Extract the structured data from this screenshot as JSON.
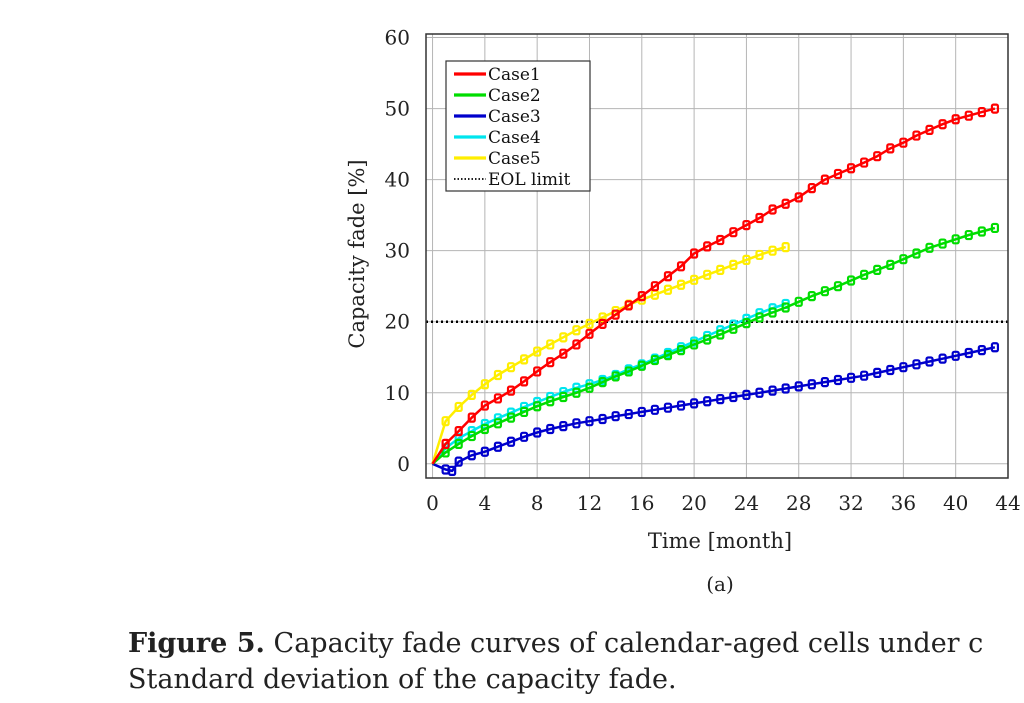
{
  "figure": {
    "subcaption": "(a)",
    "caption_label": "Figure 5.",
    "caption_line1": "Capacity fade curves of calendar-aged cells under c",
    "caption_line2": "Standard deviation of the capacity fade."
  },
  "chart_data": {
    "type": "line",
    "title": "",
    "xlabel": "Time [month]",
    "ylabel": "Capacity fade [%]",
    "xlim": [
      -0.5,
      44
    ],
    "ylim": [
      -2,
      60.5
    ],
    "xticks": [
      0,
      4,
      8,
      12,
      16,
      20,
      24,
      28,
      32,
      36,
      40,
      44
    ],
    "yticks": [
      0,
      10,
      20,
      30,
      40,
      50,
      60
    ],
    "grid": true,
    "legend_position": "top-left",
    "series": [
      {
        "name": "Case1",
        "color": "#ff0000",
        "x": [
          0,
          1,
          2,
          3,
          4,
          5,
          6,
          7,
          8,
          9,
          10,
          11,
          12,
          13,
          14,
          15,
          16,
          17,
          18,
          19,
          20,
          21,
          22,
          23,
          24,
          25,
          26,
          27,
          28,
          29,
          30,
          31,
          32,
          33,
          34,
          35,
          36,
          37,
          38,
          39,
          40,
          41,
          42,
          43
        ],
        "y": [
          0,
          2.8,
          4.6,
          6.5,
          8.2,
          9.2,
          10.3,
          11.6,
          13.0,
          14.3,
          15.5,
          16.8,
          18.3,
          19.7,
          21.0,
          22.3,
          23.6,
          25.0,
          26.4,
          27.8,
          29.6,
          30.6,
          31.5,
          32.6,
          33.6,
          34.6,
          35.8,
          36.6,
          37.5,
          38.8,
          40.0,
          40.8,
          41.6,
          42.4,
          43.3,
          44.4,
          45.2,
          46.2,
          47.0,
          47.8,
          48.5,
          49.0,
          49.5,
          50.0
        ]
      },
      {
        "name": "Case2",
        "color": "#00dd00",
        "x": [
          0,
          1,
          2,
          3,
          4,
          5,
          6,
          7,
          8,
          9,
          10,
          11,
          12,
          13,
          14,
          15,
          16,
          17,
          18,
          19,
          20,
          21,
          22,
          23,
          24,
          25,
          26,
          27,
          28,
          29,
          30,
          31,
          32,
          33,
          34,
          35,
          36,
          37,
          38,
          39,
          40,
          41,
          42,
          43
        ],
        "y": [
          0,
          1.6,
          2.8,
          3.9,
          4.9,
          5.7,
          6.5,
          7.3,
          8.1,
          8.8,
          9.4,
          10.0,
          10.7,
          11.5,
          12.3,
          13.0,
          13.8,
          14.6,
          15.3,
          16.0,
          16.8,
          17.5,
          18.2,
          19.0,
          19.8,
          20.6,
          21.3,
          22.0,
          22.8,
          23.6,
          24.3,
          25.0,
          25.8,
          26.6,
          27.3,
          28.0,
          28.8,
          29.6,
          30.4,
          31.0,
          31.6,
          32.2,
          32.7,
          33.2
        ]
      },
      {
        "name": "Case3",
        "color": "#0000cc",
        "x": [
          0,
          1,
          1.5,
          2,
          3,
          4,
          5,
          6,
          7,
          8,
          9,
          10,
          11,
          12,
          13,
          14,
          15,
          16,
          17,
          18,
          19,
          20,
          21,
          22,
          23,
          24,
          25,
          26,
          27,
          28,
          29,
          30,
          31,
          32,
          33,
          34,
          35,
          36,
          37,
          38,
          39,
          40,
          41,
          42,
          43
        ],
        "y": [
          0,
          -0.8,
          -1.0,
          0.3,
          1.2,
          1.7,
          2.4,
          3.1,
          3.8,
          4.4,
          4.9,
          5.3,
          5.7,
          6.0,
          6.3,
          6.7,
          7.0,
          7.3,
          7.6,
          7.9,
          8.2,
          8.5,
          8.8,
          9.1,
          9.4,
          9.7,
          10.0,
          10.3,
          10.6,
          10.9,
          11.2,
          11.5,
          11.8,
          12.1,
          12.4,
          12.8,
          13.2,
          13.6,
          14.0,
          14.4,
          14.8,
          15.2,
          15.6,
          16.0,
          16.4
        ]
      },
      {
        "name": "Case4",
        "color": "#00e5ee",
        "x": [
          0,
          1,
          2,
          3,
          4,
          5,
          6,
          7,
          8,
          9,
          10,
          11,
          12,
          13,
          14,
          15,
          16,
          17,
          18,
          19,
          20,
          21,
          22,
          23,
          24,
          25,
          26,
          27
        ],
        "y": [
          0,
          2.2,
          3.6,
          4.6,
          5.6,
          6.4,
          7.2,
          8.0,
          8.7,
          9.4,
          10.1,
          10.7,
          11.2,
          11.8,
          12.5,
          13.3,
          14.0,
          14.8,
          15.6,
          16.4,
          17.2,
          18.0,
          18.8,
          19.6,
          20.4,
          21.2,
          21.9,
          22.5
        ]
      },
      {
        "name": "Case5",
        "color": "#ffee00",
        "x": [
          0,
          1,
          2,
          3,
          4,
          5,
          6,
          7,
          8,
          9,
          10,
          11,
          12,
          13,
          14,
          15,
          16,
          17,
          18,
          19,
          20,
          21,
          22,
          23,
          24,
          25,
          26,
          27
        ],
        "y": [
          0,
          6.0,
          8.0,
          9.7,
          11.2,
          12.5,
          13.6,
          14.7,
          15.8,
          16.8,
          17.8,
          18.8,
          19.7,
          20.6,
          21.5,
          22.4,
          23.1,
          23.8,
          24.5,
          25.2,
          25.9,
          26.6,
          27.3,
          28.0,
          28.7,
          29.4,
          30.0,
          30.5
        ]
      },
      {
        "name": "EOL limit",
        "color": "#000000",
        "style": "dotted",
        "x": [
          -0.5,
          44
        ],
        "y": [
          20,
          20
        ]
      }
    ]
  }
}
